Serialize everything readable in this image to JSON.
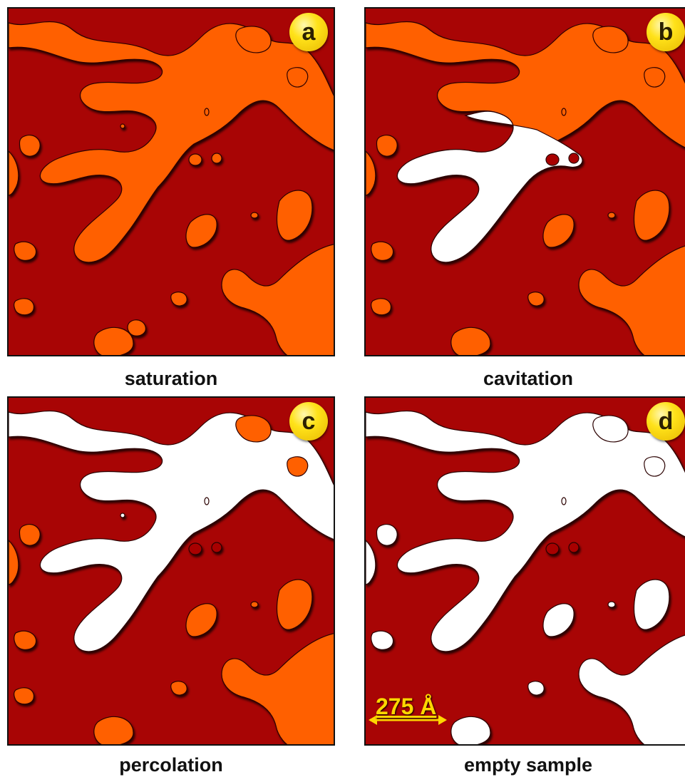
{
  "panels": [
    {
      "id": "a",
      "letter": "a",
      "caption": "saturation",
      "state": "saturated"
    },
    {
      "id": "b",
      "letter": "b",
      "caption": "cavitation",
      "state": "cavitation"
    },
    {
      "id": "c",
      "letter": "c",
      "caption": "percolation",
      "state": "percolation"
    },
    {
      "id": "d",
      "letter": "d",
      "caption": "empty sample",
      "state": "empty"
    }
  ],
  "scale_bar": {
    "label": "275 Å"
  },
  "colors": {
    "solid": "#a80505",
    "liquid": "#ff6000",
    "empty": "#ffffff",
    "badge": "#ffe21a",
    "scale_bar": "#ffd700"
  }
}
